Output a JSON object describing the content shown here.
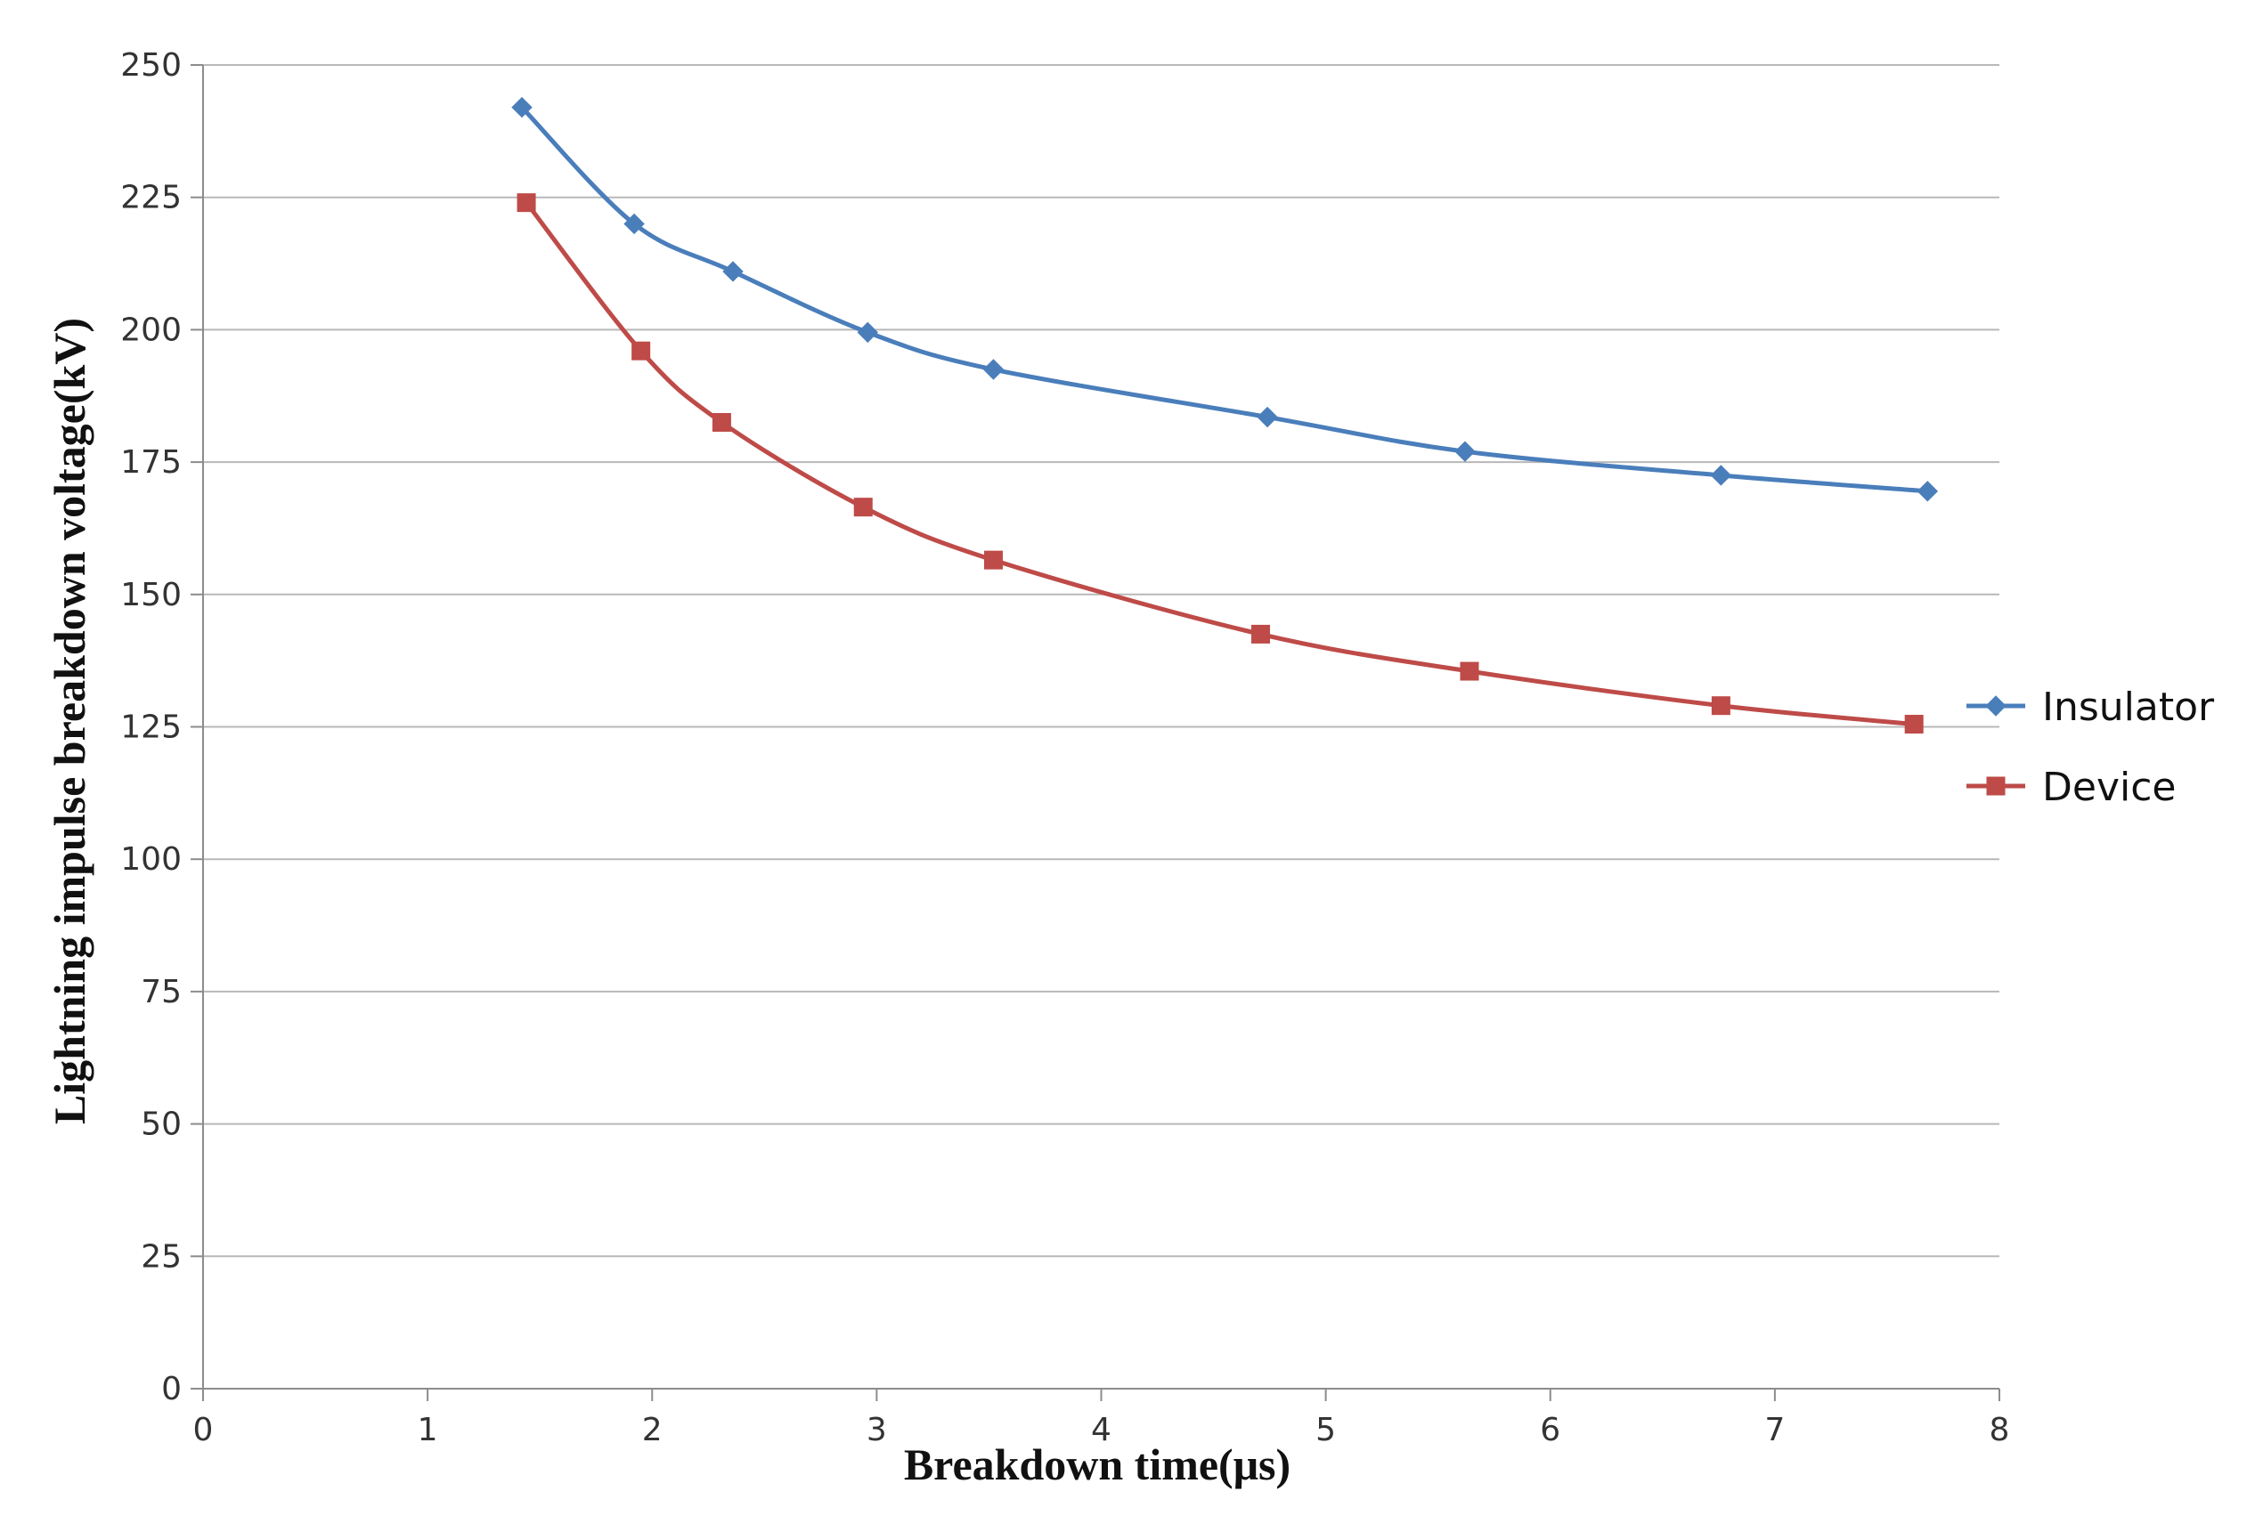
{
  "chart_data": {
    "type": "line",
    "title": "",
    "xlabel": "Breakdown time(μs)",
    "ylabel": "Lightning impulse breakdown voltage(kV)",
    "xlim": [
      0,
      8
    ],
    "ylim": [
      0,
      250
    ],
    "x_ticks": [
      0,
      1,
      2,
      3,
      4,
      5,
      6,
      7,
      8
    ],
    "y_ticks": [
      0,
      25,
      50,
      75,
      100,
      125,
      150,
      175,
      200,
      225,
      250
    ],
    "grid": "horizontal",
    "legend_position": "right",
    "series": [
      {
        "name": "Insulator",
        "color": "#4a7ebb",
        "marker": "diamond",
        "points": [
          [
            1.42,
            242
          ],
          [
            1.92,
            220
          ],
          [
            2.36,
            211
          ],
          [
            2.96,
            199.5
          ],
          [
            3.52,
            192.5
          ],
          [
            4.74,
            183.5
          ],
          [
            5.62,
            177
          ],
          [
            6.76,
            172.5
          ],
          [
            7.68,
            169.5
          ]
        ]
      },
      {
        "name": "Device",
        "color": "#be4b48",
        "marker": "square",
        "points": [
          [
            1.44,
            224
          ],
          [
            1.95,
            196
          ],
          [
            2.31,
            182.5
          ],
          [
            2.94,
            166.5
          ],
          [
            3.52,
            156.5
          ],
          [
            4.71,
            142.5
          ],
          [
            5.64,
            135.5
          ],
          [
            6.76,
            129
          ],
          [
            7.62,
            125.5
          ]
        ]
      }
    ]
  }
}
